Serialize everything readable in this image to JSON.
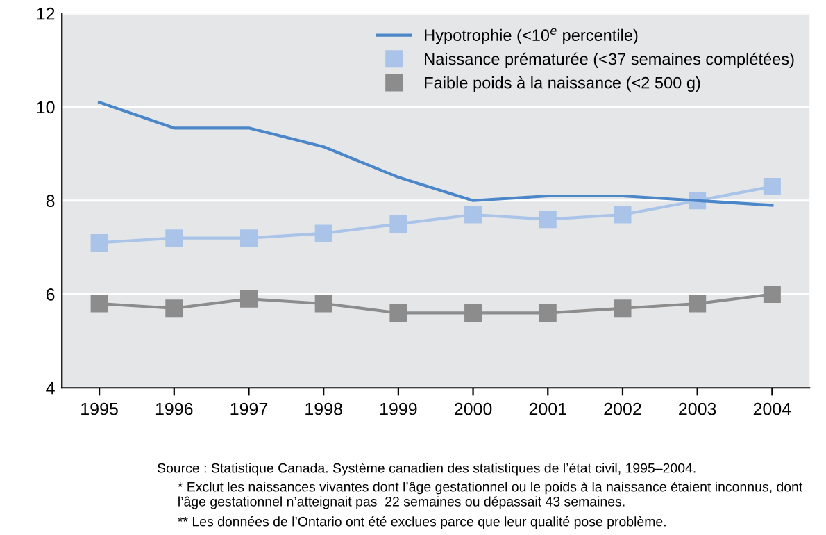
{
  "chart_data": {
    "type": "line",
    "categories": [
      "1995",
      "1996",
      "1997",
      "1998",
      "1999",
      "2000",
      "2001",
      "2002",
      "2003",
      "2004"
    ],
    "series": [
      {
        "name": "Hypotrophie (<10$^{e}$ percentile)",
        "color": "#4a86c8",
        "marker": "none",
        "values": [
          10.1,
          9.55,
          9.55,
          9.15,
          8.5,
          8.0,
          8.1,
          8.1,
          8.0,
          7.9
        ]
      },
      {
        "name": "Naissance prématurée (<37 semaines complétées)",
        "color": "#a9c4e8",
        "marker": "square",
        "values": [
          7.1,
          7.2,
          7.2,
          7.3,
          7.5,
          7.7,
          7.6,
          7.7,
          8.0,
          8.3
        ]
      },
      {
        "name": "Faible poids à la naissance (<2 500 g)",
        "color": "#8c8c8c",
        "marker": "square",
        "values": [
          5.8,
          5.7,
          5.9,
          5.8,
          5.6,
          5.6,
          5.6,
          5.7,
          5.8,
          6.0
        ]
      }
    ],
    "ylim": [
      4,
      12
    ],
    "yticks": [
      4,
      6,
      8,
      10,
      12
    ],
    "grid": "y",
    "legend": "top right",
    "annotations": [
      "Source : Statistique Canada. Système canadien des statistiques de l’état civil, 1995–2004.",
      "* Exclut les naissances vivantes dont l’âge gestationnel ou le poids à la naissance étaient inconnus, dont l’âge gestationnel n’atteignait pas  22 semaines ou dépassait 43 semaines.",
      "** Les données de l’Ontario ont été exclues parce que leur qualité pose problème."
    ]
  }
}
